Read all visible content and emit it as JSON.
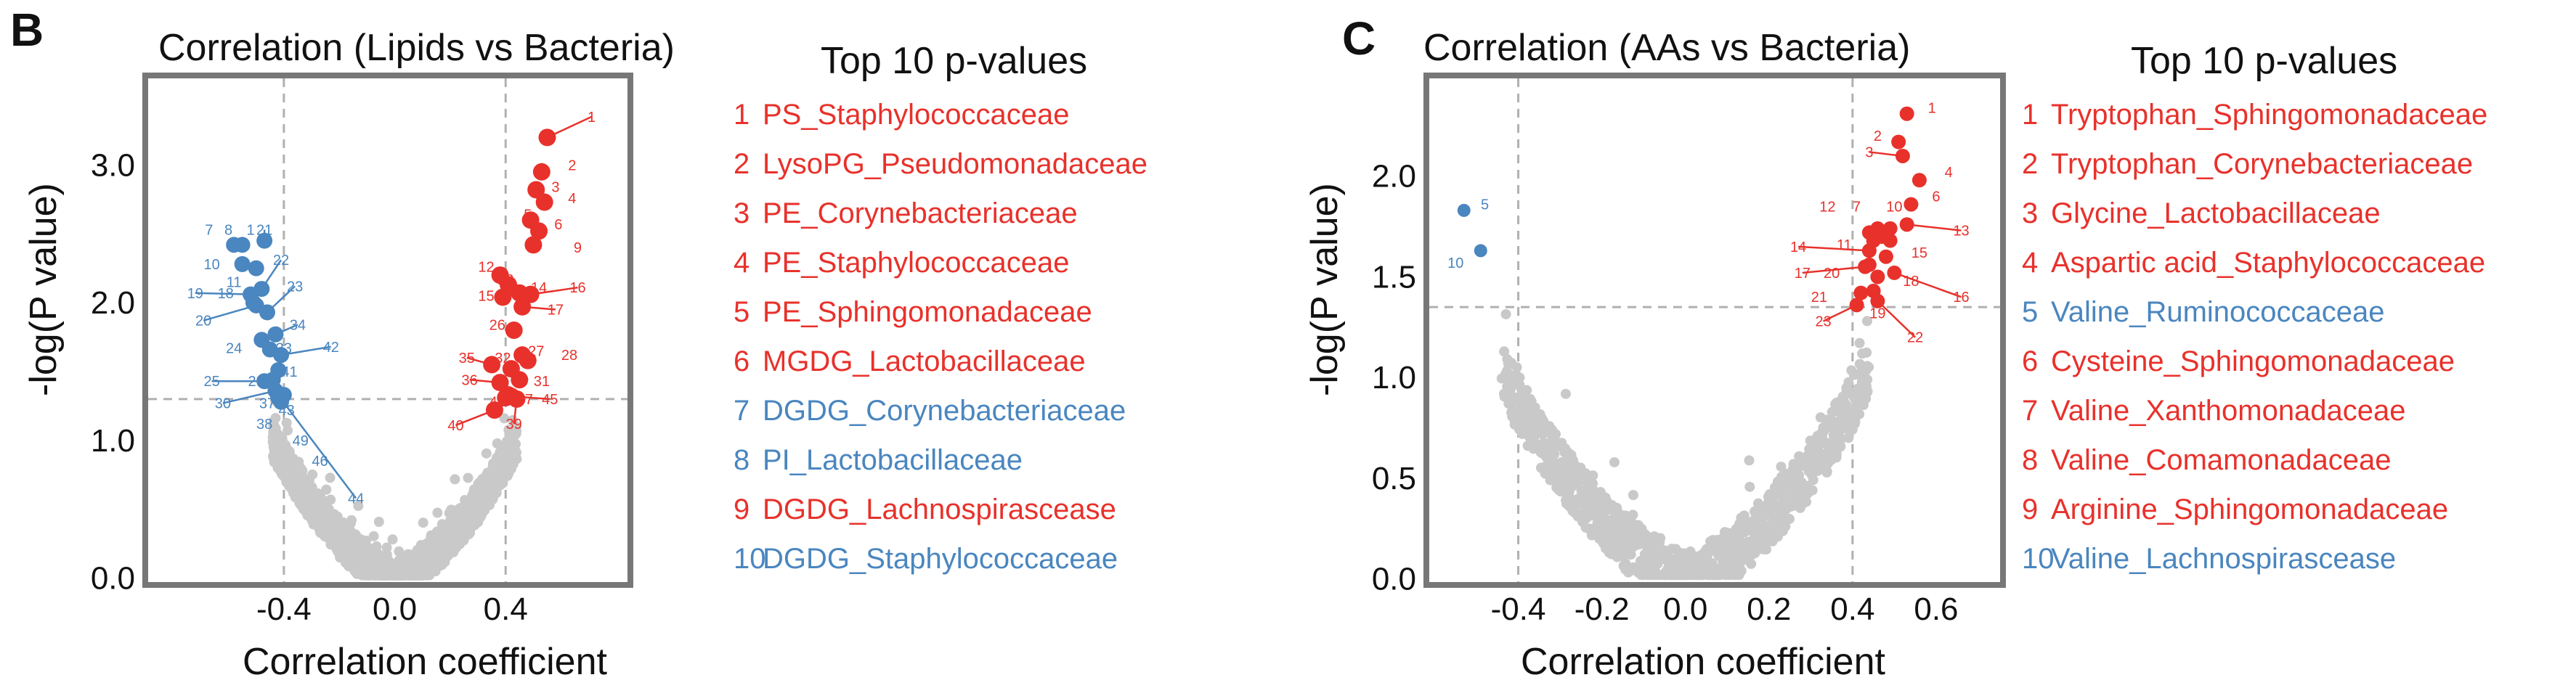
{
  "chart_data": [
    {
      "panel": "B",
      "type": "scatter",
      "title": "Correlation (Lipids vs Bacteria)",
      "xlabel": "Correlation coefficient",
      "ylabel": "-log(P value)",
      "x_ticks": [
        "-0.4",
        "0.0",
        "0.4"
      ],
      "y_ticks": [
        "0.0",
        "1.0",
        "2.0",
        "3.0"
      ],
      "xlim": [
        -0.9,
        0.85
      ],
      "ylim": [
        -0.05,
        3.65
      ],
      "threshold_x": [
        -0.4,
        0.4
      ],
      "threshold_y": 1.3,
      "colors": {
        "positive": "#e8312b",
        "negative": "#4a86bf",
        "nonsig": "#c9c9c9"
      },
      "legend_title": "Top 10 p-values",
      "top10": [
        {
          "rank": "1",
          "label": "PS_Staphylococcaceae",
          "sign": "positive"
        },
        {
          "rank": "2",
          "label": "LysoPG_Pseudomonadaceae",
          "sign": "positive"
        },
        {
          "rank": "3",
          "label": "PE_Corynebacteriaceae",
          "sign": "positive"
        },
        {
          "rank": "4",
          "label": "PE_Staphylococcaceae",
          "sign": "positive"
        },
        {
          "rank": "5",
          "label": "PE_Sphingomonadaceae",
          "sign": "positive"
        },
        {
          "rank": "6",
          "label": "MGDG_Lactobacillaceae",
          "sign": "positive"
        },
        {
          "rank": "7",
          "label": "DGDG_Corynebacteriaceae",
          "sign": "negative"
        },
        {
          "rank": "8",
          "label": "PI_Lactobacillaceae",
          "sign": "negative"
        },
        {
          "rank": "9",
          "label": "DGDG_Lachnospirascease",
          "sign": "positive"
        },
        {
          "rank": "10",
          "label": "DGDG_Staphylococcaceae",
          "sign": "negative"
        }
      ],
      "points_positive": [
        {
          "id": "1",
          "x": 0.55,
          "y": 3.2
        },
        {
          "id": "2",
          "x": 0.53,
          "y": 2.95
        },
        {
          "id": "3",
          "x": 0.51,
          "y": 2.82
        },
        {
          "id": "4",
          "x": 0.54,
          "y": 2.73
        },
        {
          "id": "5",
          "x": 0.49,
          "y": 2.6
        },
        {
          "id": "6",
          "x": 0.52,
          "y": 2.52
        },
        {
          "id": "9",
          "x": 0.5,
          "y": 2.42
        },
        {
          "id": "12",
          "x": 0.38,
          "y": 2.2
        },
        {
          "id": "13",
          "x": 0.41,
          "y": 2.13
        },
        {
          "id": "14",
          "x": 0.45,
          "y": 2.07
        },
        {
          "id": "15",
          "x": 0.39,
          "y": 2.04
        },
        {
          "id": "16",
          "x": 0.49,
          "y": 2.06
        },
        {
          "id": "17",
          "x": 0.46,
          "y": 1.97
        },
        {
          "id": "26",
          "x": 0.43,
          "y": 1.8
        },
        {
          "id": "27",
          "x": 0.46,
          "y": 1.62
        },
        {
          "id": "28",
          "x": 0.48,
          "y": 1.58
        },
        {
          "id": "31",
          "x": 0.45,
          "y": 1.44
        },
        {
          "id": "32",
          "x": 0.42,
          "y": 1.52
        },
        {
          "id": "35",
          "x": 0.35,
          "y": 1.55
        },
        {
          "id": "36",
          "x": 0.38,
          "y": 1.42
        },
        {
          "id": "39",
          "x": 0.44,
          "y": 1.3
        },
        {
          "id": "40",
          "x": 0.36,
          "y": 1.22
        },
        {
          "id": "45",
          "x": 0.42,
          "y": 1.32
        },
        {
          "id": "47",
          "x": 0.41,
          "y": 1.33
        },
        {
          "id": "48",
          "x": 0.4,
          "y": 1.31
        }
      ],
      "points_negative": [
        {
          "id": "7",
          "x": -0.58,
          "y": 2.42
        },
        {
          "id": "8",
          "x": -0.55,
          "y": 2.42
        },
        {
          "id": "10",
          "x": -0.55,
          "y": 2.28
        },
        {
          "id": "11",
          "x": -0.5,
          "y": 2.25
        },
        {
          "id": "19",
          "x": -0.52,
          "y": 2.06
        },
        {
          "id": "18",
          "x": -0.51,
          "y": 2.0
        },
        {
          "id": "20",
          "x": -0.5,
          "y": 1.98
        },
        {
          "id": "21",
          "x": -0.47,
          "y": 2.45
        },
        {
          "id": "23",
          "x": -0.46,
          "y": 1.93
        },
        {
          "id": "22",
          "x": -0.48,
          "y": 2.1
        },
        {
          "id": "24",
          "x": -0.48,
          "y": 1.73
        },
        {
          "id": "25",
          "x": -0.47,
          "y": 1.43
        },
        {
          "id": "29",
          "x": -0.44,
          "y": 1.44
        },
        {
          "id": "30",
          "x": -0.43,
          "y": 1.36
        },
        {
          "id": "33",
          "x": -0.45,
          "y": 1.66
        },
        {
          "id": "34",
          "x": -0.43,
          "y": 1.77
        },
        {
          "id": "37",
          "x": -0.42,
          "y": 1.31
        },
        {
          "id": "38",
          "x": -0.41,
          "y": 1.28
        },
        {
          "id": "41",
          "x": -0.42,
          "y": 1.51
        },
        {
          "id": "42",
          "x": -0.41,
          "y": 1.62
        },
        {
          "id": "43",
          "x": -0.42,
          "y": 1.34
        },
        {
          "id": "44",
          "x": -0.41,
          "y": 1.3
        },
        {
          "id": "46",
          "x": -0.42,
          "y": 1.32
        },
        {
          "id": "49",
          "x": -0.4,
          "y": 1.33
        }
      ],
      "point_labels": [
        {
          "text": "1",
          "tx": 0.71,
          "ty": 3.35,
          "px": 0.55,
          "py": 3.2
        },
        {
          "text": "2",
          "tx": 0.64,
          "ty": 3.0,
          "px": null,
          "py": null
        },
        {
          "text": "3",
          "tx": 0.58,
          "ty": 2.84,
          "px": null,
          "py": null
        },
        {
          "text": "4",
          "tx": 0.64,
          "ty": 2.76,
          "px": null,
          "py": null
        },
        {
          "text": "5",
          "tx": 0.48,
          "ty": 2.64,
          "px": null,
          "py": null
        },
        {
          "text": "6",
          "tx": 0.59,
          "ty": 2.57,
          "px": null,
          "py": null
        },
        {
          "text": "9",
          "tx": 0.66,
          "ty": 2.4,
          "px": null,
          "py": null
        },
        {
          "text": "12",
          "tx": 0.33,
          "ty": 2.26,
          "px": null,
          "py": null
        },
        {
          "text": "13",
          "tx": 0.4,
          "ty": 2.17,
          "px": null,
          "py": null
        },
        {
          "text": "14",
          "tx": 0.52,
          "ty": 2.11,
          "px": null,
          "py": null
        },
        {
          "text": "15",
          "tx": 0.33,
          "ty": 2.05,
          "px": null,
          "py": null
        },
        {
          "text": "16",
          "tx": 0.66,
          "ty": 2.11,
          "px": 0.49,
          "py": 2.06
        },
        {
          "text": "17",
          "tx": 0.58,
          "ty": 1.95,
          "px": 0.46,
          "py": 1.97
        },
        {
          "text": "26",
          "tx": 0.37,
          "ty": 1.84,
          "px": null,
          "py": null
        },
        {
          "text": "27",
          "tx": 0.51,
          "ty": 1.65,
          "px": null,
          "py": null
        },
        {
          "text": "28",
          "tx": 0.63,
          "ty": 1.62,
          "px": null,
          "py": null
        },
        {
          "text": "31",
          "tx": 0.53,
          "ty": 1.43,
          "px": null,
          "py": null
        },
        {
          "text": "32",
          "tx": 0.39,
          "ty": 1.6,
          "px": null,
          "py": null
        },
        {
          "text": "35",
          "tx": 0.26,
          "ty": 1.6,
          "px": 0.35,
          "py": 1.55
        },
        {
          "text": "36",
          "tx": 0.27,
          "ty": 1.44,
          "px": 0.38,
          "py": 1.42
        },
        {
          "text": "39",
          "tx": 0.43,
          "ty": 1.12,
          "px": 0.44,
          "py": 1.3
        },
        {
          "text": "40",
          "tx": 0.22,
          "ty": 1.11,
          "px": 0.36,
          "py": 1.22
        },
        {
          "text": "45",
          "tx": 0.56,
          "ty": 1.3,
          "px": 0.42,
          "py": 1.32
        },
        {
          "text": "47",
          "tx": 0.47,
          "ty": 1.3,
          "px": null,
          "py": null
        },
        {
          "text": "48",
          "tx": 0.37,
          "ty": 1.28,
          "px": null,
          "py": null
        },
        {
          "text": "7",
          "tx": -0.67,
          "ty": 2.53,
          "px": null,
          "py": null
        },
        {
          "text": "8",
          "tx": -0.6,
          "ty": 2.53,
          "px": null,
          "py": null
        },
        {
          "text": "1",
          "tx": -0.52,
          "ty": 2.53,
          "px": null,
          "py": null
        },
        {
          "text": "21",
          "tx": -0.47,
          "ty": 2.53,
          "px": -0.47,
          "py": 2.45
        },
        {
          "text": "22",
          "tx": -0.41,
          "ty": 2.31,
          "px": -0.48,
          "py": 2.1
        },
        {
          "text": "23",
          "tx": -0.36,
          "ty": 2.12,
          "px": -0.46,
          "py": 1.93
        },
        {
          "text": "34",
          "tx": -0.35,
          "ty": 1.84,
          "px": -0.43,
          "py": 1.77
        },
        {
          "text": "42",
          "tx": -0.23,
          "ty": 1.68,
          "px": -0.41,
          "py": 1.62
        },
        {
          "text": "41",
          "tx": -0.38,
          "ty": 1.5,
          "px": null,
          "py": null
        },
        {
          "text": "43",
          "tx": -0.39,
          "ty": 1.22,
          "px": null,
          "py": null
        },
        {
          "text": "49",
          "tx": -0.34,
          "ty": 1.0,
          "px": null,
          "py": null
        },
        {
          "text": "46",
          "tx": -0.27,
          "ty": 0.85,
          "px": null,
          "py": null
        },
        {
          "text": "44",
          "tx": -0.14,
          "ty": 0.58,
          "px": -0.41,
          "py": 1.3
        },
        {
          "text": "10",
          "tx": -0.66,
          "ty": 2.28,
          "px": null,
          "py": null
        },
        {
          "text": "11",
          "tx": -0.58,
          "ty": 2.15,
          "px": null,
          "py": null
        },
        {
          "text": "19",
          "tx": -0.72,
          "ty": 2.07,
          "px": -0.52,
          "py": 2.06
        },
        {
          "text": "18",
          "tx": -0.61,
          "ty": 2.07,
          "px": null,
          "py": null
        },
        {
          "text": "20",
          "tx": -0.69,
          "ty": 1.87,
          "px": -0.5,
          "py": 1.98
        },
        {
          "text": "24",
          "tx": -0.58,
          "ty": 1.67,
          "px": null,
          "py": null
        },
        {
          "text": "33",
          "tx": -0.4,
          "ty": 1.67,
          "px": null,
          "py": null
        },
        {
          "text": "25",
          "tx": -0.66,
          "ty": 1.43,
          "px": -0.47,
          "py": 1.43
        },
        {
          "text": "29",
          "tx": -0.5,
          "ty": 1.43,
          "px": null,
          "py": null
        },
        {
          "text": "30",
          "tx": -0.62,
          "ty": 1.27,
          "px": -0.43,
          "py": 1.36
        },
        {
          "text": "37",
          "tx": -0.46,
          "ty": 1.27,
          "px": null,
          "py": null
        },
        {
          "text": "38",
          "tx": -0.47,
          "ty": 1.12,
          "px": null,
          "py": null
        }
      ]
    },
    {
      "panel": "C",
      "type": "scatter",
      "title": "Correlation (AAs vs Bacteria)",
      "xlabel": "Correlation coefficient",
      "ylabel": "-log(P value)",
      "x_ticks": [
        "-0.4",
        "-0.2",
        "0.0",
        "0.2",
        "0.4",
        "0.6"
      ],
      "y_ticks": [
        "0.0",
        "0.5",
        "1.0",
        "1.5",
        "2.0"
      ],
      "xlim": [
        -0.62,
        0.76
      ],
      "ylim": [
        -0.03,
        2.5
      ],
      "threshold_x": [
        -0.4,
        0.4
      ],
      "threshold_y": 1.35,
      "colors": {
        "positive": "#e8312b",
        "negative": "#4a86bf",
        "nonsig": "#c9c9c9"
      },
      "legend_title": "Top 10 p-values",
      "top10": [
        {
          "rank": "1",
          "label": "Tryptophan_Sphingomonadaceae",
          "sign": "positive"
        },
        {
          "rank": "2",
          "label": "Tryptophan_Corynebacteriaceae",
          "sign": "positive"
        },
        {
          "rank": "3",
          "label": "Glycine_Lactobacillaceae",
          "sign": "positive"
        },
        {
          "rank": "4",
          "label": "Aspartic acid_Staphylococcaceae",
          "sign": "positive"
        },
        {
          "rank": "5",
          "label": "Valine_Ruminococcaceae",
          "sign": "negative"
        },
        {
          "rank": "6",
          "label": "Cysteine_Sphingomonadaceae",
          "sign": "positive"
        },
        {
          "rank": "7",
          "label": "Valine_Xanthomonadaceae",
          "sign": "positive"
        },
        {
          "rank": "8",
          "label": "Valine_Comamonadaceae",
          "sign": "positive"
        },
        {
          "rank": "9",
          "label": "Arginine_Sphingomonadaceae",
          "sign": "positive"
        },
        {
          "rank": "10",
          "label": "Valine_Lachnospirascease",
          "sign": "negative"
        }
      ],
      "points_positive": [
        {
          "id": "1",
          "x": 0.53,
          "y": 2.31
        },
        {
          "id": "2",
          "x": 0.51,
          "y": 2.17
        },
        {
          "id": "3",
          "x": 0.52,
          "y": 2.1
        },
        {
          "id": "4",
          "x": 0.56,
          "y": 1.98
        },
        {
          "id": "6",
          "x": 0.54,
          "y": 1.86
        },
        {
          "id": "7",
          "x": 0.46,
          "y": 1.74
        },
        {
          "id": "8",
          "x": 0.47,
          "y": 1.7
        },
        {
          "id": "9",
          "x": 0.49,
          "y": 1.68
        },
        {
          "id": "10",
          "x": 0.49,
          "y": 1.74
        },
        {
          "id": "11",
          "x": 0.45,
          "y": 1.68
        },
        {
          "id": "12",
          "x": 0.44,
          "y": 1.72
        },
        {
          "id": "13",
          "x": 0.53,
          "y": 1.76
        },
        {
          "id": "14",
          "x": 0.44,
          "y": 1.63
        },
        {
          "id": "15",
          "x": 0.48,
          "y": 1.6
        },
        {
          "id": "16",
          "x": 0.5,
          "y": 1.52
        },
        {
          "id": "17",
          "x": 0.43,
          "y": 1.55
        },
        {
          "id": "18",
          "x": 0.46,
          "y": 1.5
        },
        {
          "id": "19",
          "x": 0.45,
          "y": 1.43
        },
        {
          "id": "20",
          "x": 0.44,
          "y": 1.56
        },
        {
          "id": "21",
          "x": 0.42,
          "y": 1.42
        },
        {
          "id": "22",
          "x": 0.46,
          "y": 1.38
        },
        {
          "id": "23",
          "x": 0.41,
          "y": 1.36
        }
      ],
      "points_negative": [
        {
          "id": "5",
          "x": -0.53,
          "y": 1.83
        },
        {
          "id": "10",
          "x": -0.49,
          "y": 1.63
        }
      ],
      "point_labels": [
        {
          "text": "1",
          "tx": 0.59,
          "ty": 2.34,
          "px": null,
          "py": null
        },
        {
          "text": "2",
          "tx": 0.46,
          "ty": 2.2,
          "px": null,
          "py": null
        },
        {
          "text": "3",
          "tx": 0.44,
          "ty": 2.12,
          "px": 0.52,
          "py": 2.1
        },
        {
          "text": "4",
          "tx": 0.63,
          "ty": 2.02,
          "px": null,
          "py": null
        },
        {
          "text": "6",
          "tx": 0.6,
          "ty": 1.9,
          "px": null,
          "py": null
        },
        {
          "text": "7",
          "tx": 0.41,
          "ty": 1.85,
          "px": null,
          "py": null
        },
        {
          "text": "10",
          "tx": 0.5,
          "ty": 1.85,
          "px": null,
          "py": null
        },
        {
          "text": "12",
          "tx": 0.34,
          "ty": 1.85,
          "px": null,
          "py": null
        },
        {
          "text": "13",
          "tx": 0.66,
          "ty": 1.73,
          "px": 0.53,
          "py": 1.76
        },
        {
          "text": "11",
          "tx": 0.38,
          "ty": 1.66,
          "px": null,
          "py": null
        },
        {
          "text": "14",
          "tx": 0.27,
          "ty": 1.65,
          "px": 0.44,
          "py": 1.63
        },
        {
          "text": "15",
          "tx": 0.56,
          "ty": 1.62,
          "px": null,
          "py": null
        },
        {
          "text": "17",
          "tx": 0.28,
          "ty": 1.52,
          "px": 0.43,
          "py": 1.55
        },
        {
          "text": "20",
          "tx": 0.35,
          "ty": 1.52,
          "px": null,
          "py": null
        },
        {
          "text": "18",
          "tx": 0.54,
          "ty": 1.48,
          "px": null,
          "py": null
        },
        {
          "text": "16",
          "tx": 0.66,
          "ty": 1.4,
          "px": 0.5,
          "py": 1.52
        },
        {
          "text": "21",
          "tx": 0.32,
          "ty": 1.4,
          "px": null,
          "py": null
        },
        {
          "text": "23",
          "tx": 0.33,
          "ty": 1.28,
          "px": 0.41,
          "py": 1.36
        },
        {
          "text": "19",
          "tx": 0.46,
          "ty": 1.32,
          "px": null,
          "py": null
        },
        {
          "text": "22",
          "tx": 0.55,
          "ty": 1.2,
          "px": 0.46,
          "py": 1.38
        },
        {
          "text": "5",
          "tx": -0.48,
          "ty": 1.86,
          "px": null,
          "py": null
        },
        {
          "text": "10",
          "tx": -0.55,
          "ty": 1.57,
          "px": null,
          "py": null
        }
      ]
    }
  ]
}
